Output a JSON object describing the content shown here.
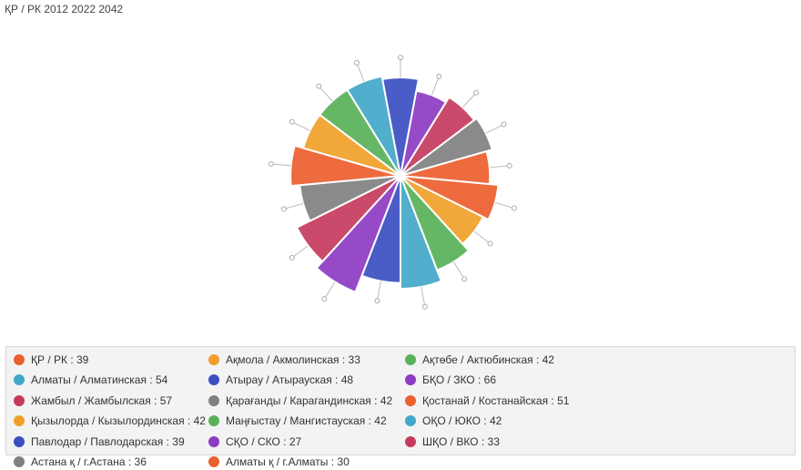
{
  "header": {
    "title": "ҚР / РК 2012 2022 2042"
  },
  "chart_data": {
    "type": "pie",
    "series": [
      {
        "label": "ҚР / РК",
        "value": 39,
        "color": "#ec5f2e"
      },
      {
        "label": "Ақмола / Акмолинская",
        "value": 33,
        "color": "#f0a02a"
      },
      {
        "label": "Ақтөбе / Актюбинская",
        "value": 42,
        "color": "#58b15a"
      },
      {
        "label": "Алматы / Алматинская",
        "value": 54,
        "color": "#43a8c8"
      },
      {
        "label": "Атырау / Атырауская",
        "value": 48,
        "color": "#3b4fc0"
      },
      {
        "label": "БҚО / ЗКО",
        "value": 66,
        "color": "#8e3bc4"
      },
      {
        "label": "Жамбыл / Жамбылская",
        "value": 57,
        "color": "#c53b5e"
      },
      {
        "label": "Қарағанды / Карагандинская",
        "value": 42,
        "color": "#808080"
      },
      {
        "label": "Қостанай / Костанайская",
        "value": 51,
        "color": "#ec5f2e"
      },
      {
        "label": "Қызылорда / Кызылординская",
        "value": 42,
        "color": "#f0a02a"
      },
      {
        "label": "Маңғыстау / Мангистауская",
        "value": 42,
        "color": "#58b15a"
      },
      {
        "label": "ОҚО / ЮКО",
        "value": 42,
        "color": "#43a8c8"
      },
      {
        "label": "Павлодар / Павлодарская",
        "value": 39,
        "color": "#3b4fc0"
      },
      {
        "label": "СҚО / СКО",
        "value": 27,
        "color": "#8e3bc4"
      },
      {
        "label": "ШҚО / ВКО",
        "value": 33,
        "color": "#c53b5e"
      },
      {
        "label": "Астана қ / г.Астана",
        "value": 36,
        "color": "#808080"
      },
      {
        "label": "Алматы қ / г.Алматы",
        "value": 30,
        "color": "#ec5f2e"
      }
    ],
    "legend": {
      "placement": "bottom",
      "items": [
        "ҚР / РК : 39",
        "Ақмола / Акмолинская : 33",
        "Ақтөбе / Актюбинская : 42",
        "Алматы / Алматинская : 54",
        "Атырау / Атырауская : 48",
        "БҚО / ЗКО : 66",
        "Жамбыл / Жамбылская : 57",
        "Қарағанды / Карагандинская : 42",
        "Қостанай / Костанайская : 51",
        "Қызылорда / Кызылординская : 42",
        "Маңғыстау / Мангистауская : 42",
        "ОҚО / ЮКО : 42",
        "Павлодар / Павлодарская : 39",
        "СҚО / СКО : 27",
        "ШҚО / ВКО : 33",
        "Астана қ / г.Астана : 36",
        "Алматы қ / г.Алматы : 30"
      ]
    }
  }
}
